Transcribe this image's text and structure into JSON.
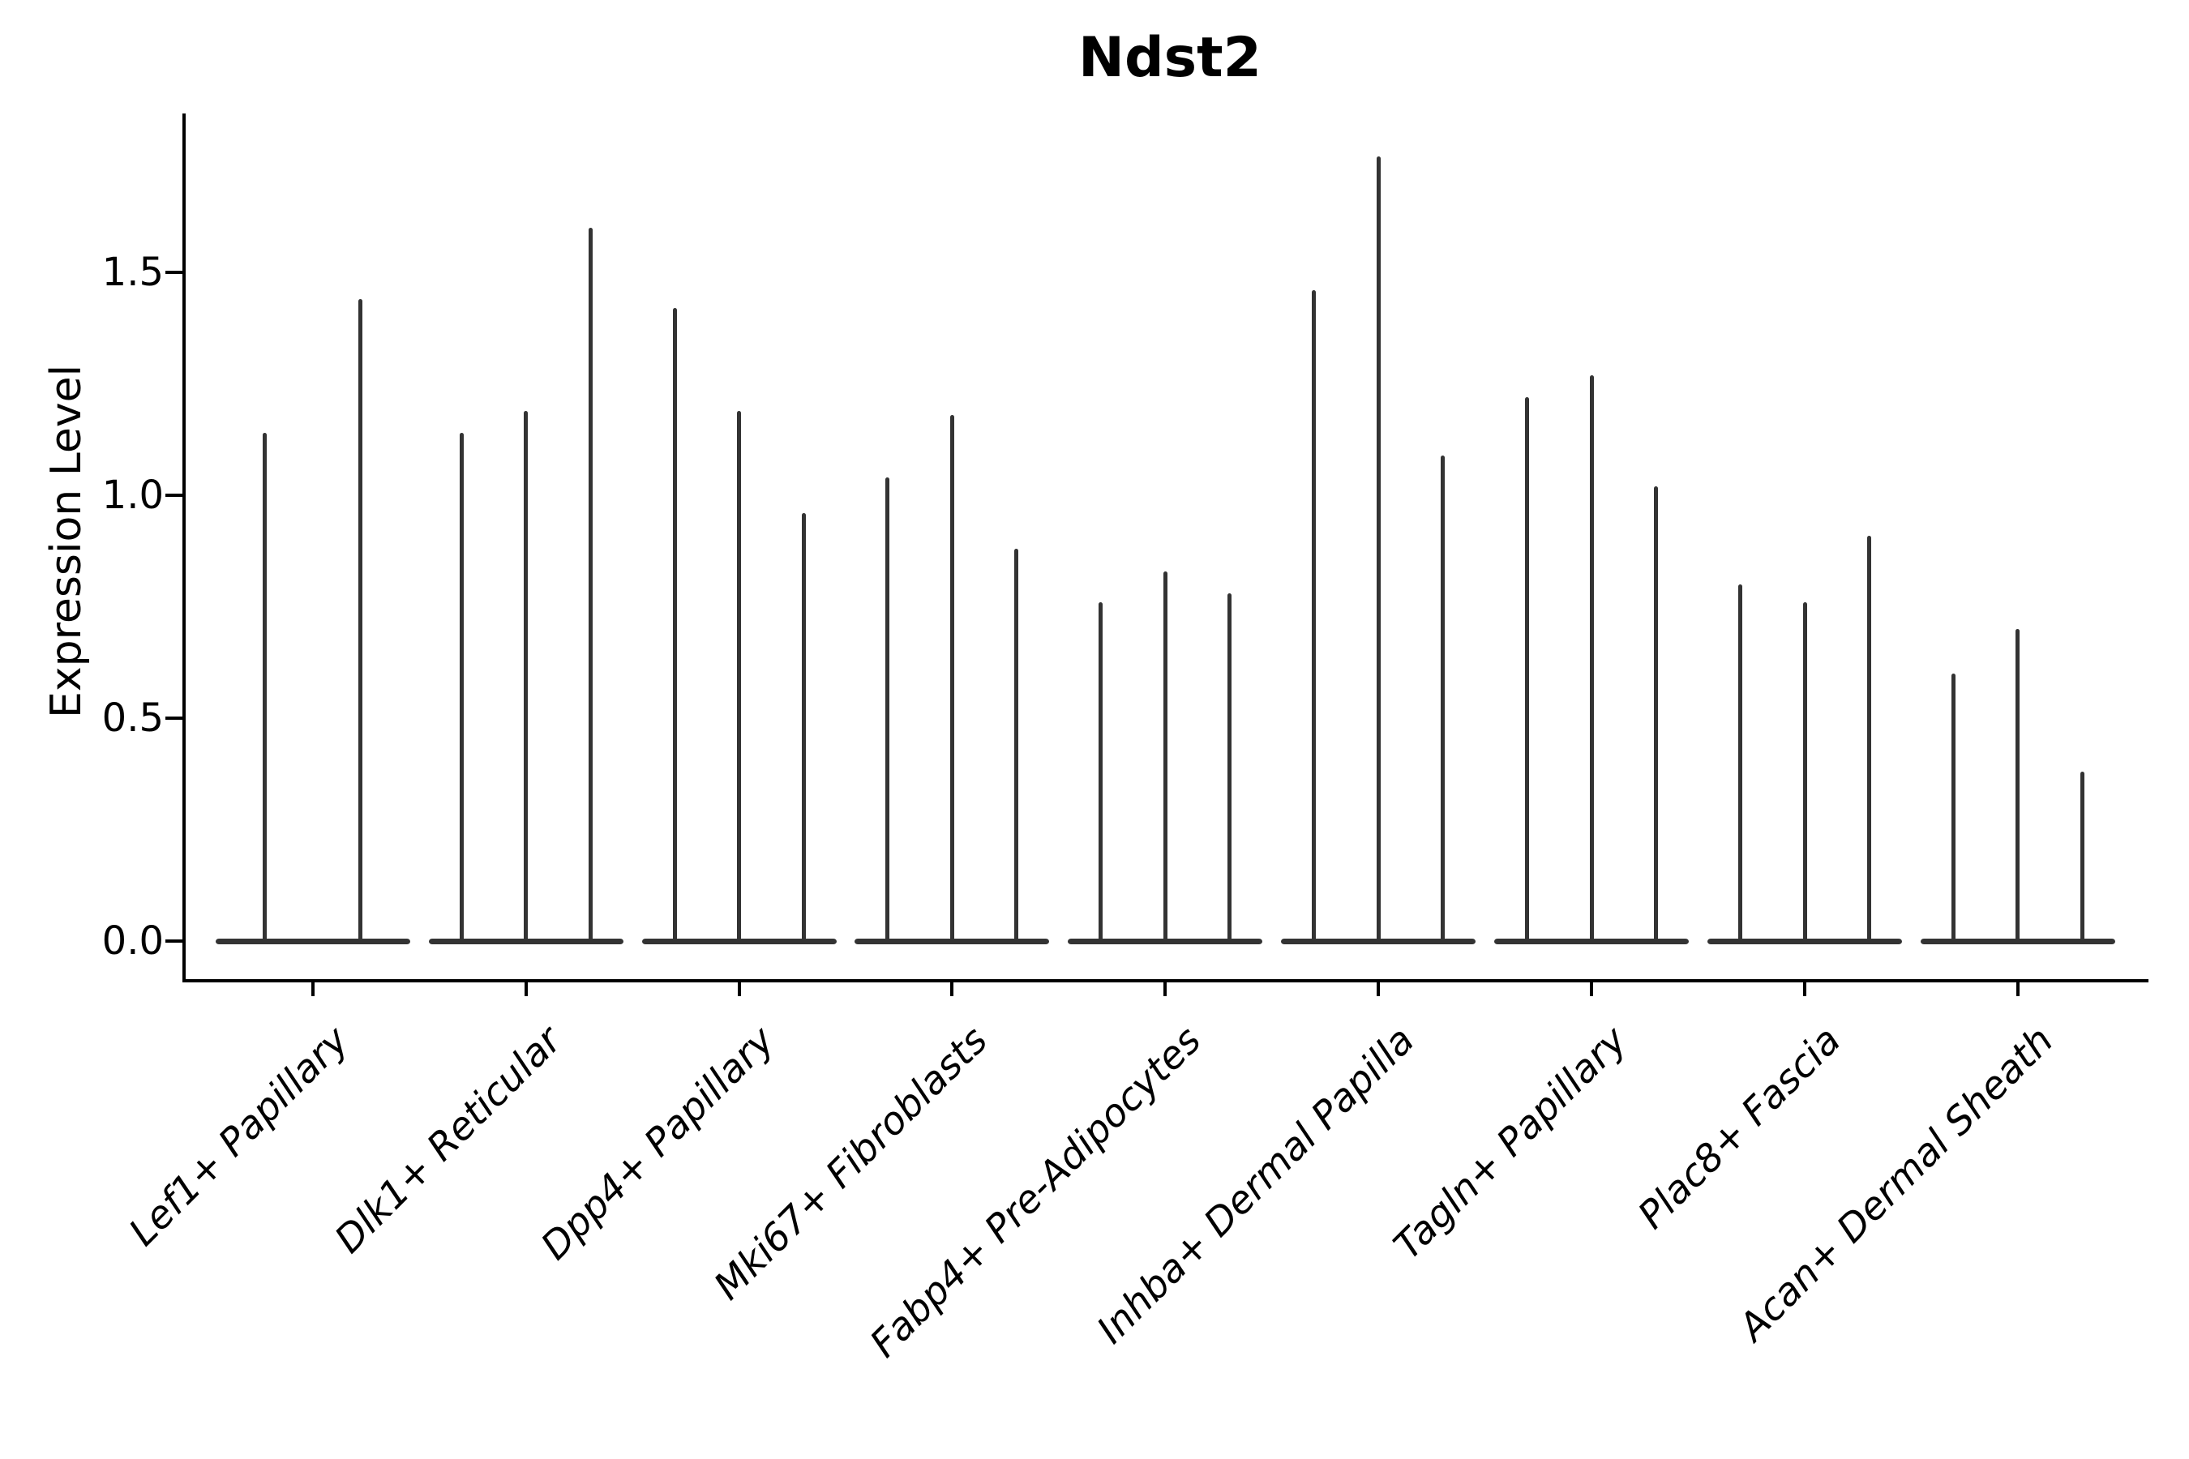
{
  "chart_data": {
    "type": "violin",
    "title": "Ndst2",
    "xlabel": "",
    "ylabel": "Expression Level",
    "ytick_values": [
      0.0,
      0.5,
      1.0,
      1.5
    ],
    "ytick_labels": [
      "0.0",
      "0.5",
      "1.0",
      "1.5"
    ],
    "ylim": [
      -0.09,
      1.86
    ],
    "grid": false,
    "legend": "none",
    "categories": [
      "Lef1+ Papillary",
      "Dlk1+ Reticular",
      "Dpp4+ Papillary",
      "Mki67+ Fibroblasts",
      "Fabp4+ Pre-Adipocytes",
      "Inhba+ Dermal Papilla",
      "Tagln+ Papillary",
      "Plac8+ Fascia",
      "Acan+ Dermal Sheath"
    ],
    "violins": [
      {
        "category": "Lef1+ Papillary",
        "max_expression": [
          1.14,
          1.44
        ]
      },
      {
        "category": "Dlk1+ Reticular",
        "max_expression": [
          1.14,
          1.19,
          1.6
        ]
      },
      {
        "category": "Dpp4+ Papillary",
        "max_expression": [
          1.42,
          1.19,
          0.96
        ]
      },
      {
        "category": "Mki67+ Fibroblasts",
        "max_expression": [
          1.04,
          1.18,
          0.88
        ]
      },
      {
        "category": "Fabp4+ Pre-Adipocytes",
        "max_expression": [
          0.76,
          0.83,
          0.78
        ]
      },
      {
        "category": "Inhba+ Dermal Papilla",
        "max_expression": [
          1.46,
          1.76,
          1.09
        ]
      },
      {
        "category": "Tagln+ Papillary",
        "max_expression": [
          1.22,
          1.27,
          1.02
        ]
      },
      {
        "category": "Plac8+ Fascia",
        "max_expression": [
          0.8,
          0.76,
          0.91
        ]
      },
      {
        "category": "Acan+ Dermal Sheath",
        "max_expression": [
          0.6,
          0.7,
          0.38
        ]
      }
    ],
    "style": {
      "violin_color": "#333333",
      "axis_color": "#000000",
      "background_color": "#ffffff"
    }
  }
}
